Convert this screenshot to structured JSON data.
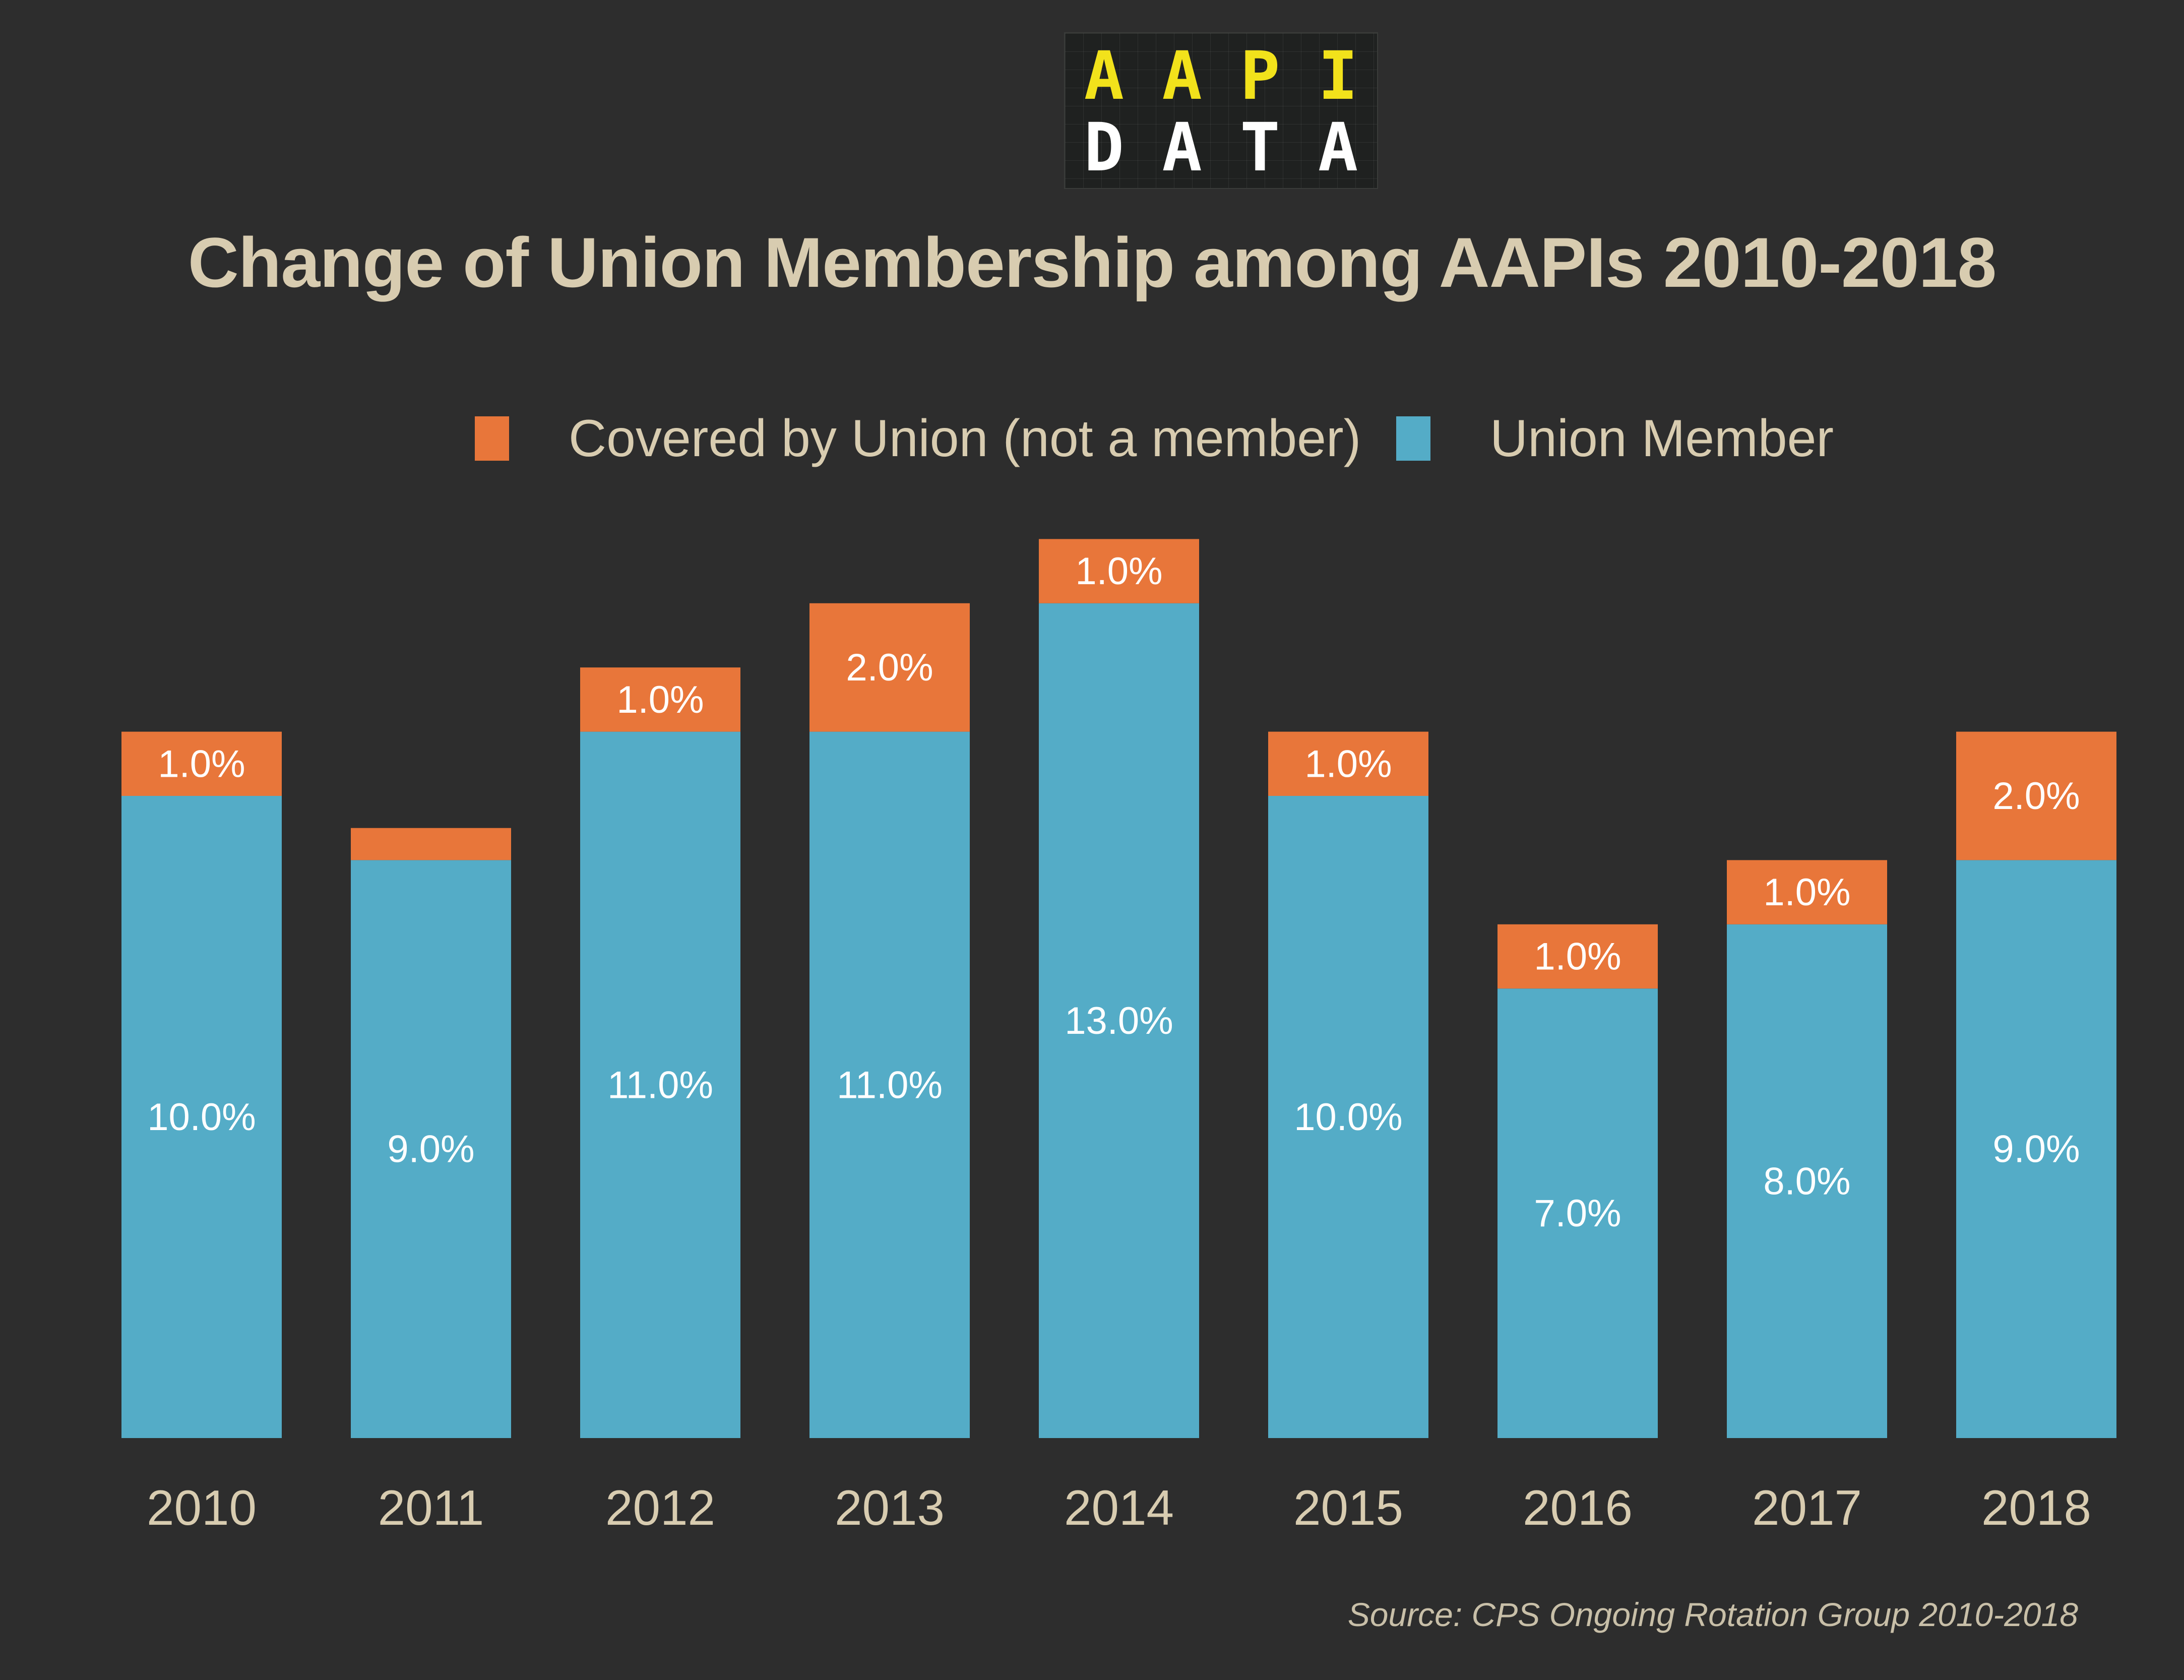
{
  "logo": {
    "line1": [
      "A",
      "A",
      "P",
      "I"
    ],
    "line2": [
      "D",
      "A",
      "T",
      "A"
    ]
  },
  "title": "Change of Union Membership among AAPIs 2010-2018",
  "source": "Source: CPS Ongoing Rotation Group 2010-2018",
  "colors": {
    "background": "#2d2d2d",
    "covered": "#e8763a",
    "member": "#54acc7",
    "text": "#d8ccb0",
    "bar_label": "#ffffff"
  },
  "chart_data": {
    "type": "bar",
    "stacked": true,
    "categories": [
      "2010",
      "2011",
      "2012",
      "2013",
      "2014",
      "2015",
      "2016",
      "2017",
      "2018"
    ],
    "series": [
      {
        "name": "Union Member",
        "values": [
          10.0,
          9.0,
          11.0,
          11.0,
          13.0,
          10.0,
          7.0,
          8.0,
          9.0
        ],
        "labels": [
          "10.0%",
          "9.0%",
          "11.0%",
          "11.0%",
          "13.0%",
          "10.0%",
          "7.0%",
          "8.0%",
          "9.0%"
        ]
      },
      {
        "name": "Covered by Union (not a member)",
        "values": [
          1.0,
          0.5,
          1.0,
          2.0,
          1.0,
          1.0,
          1.0,
          1.0,
          2.0
        ],
        "labels": [
          "1.0%",
          "",
          "1.0%",
          "2.0%",
          "1.0%",
          "1.0%",
          "1.0%",
          "1.0%",
          "2.0%"
        ]
      }
    ],
    "legend": [
      "Covered by Union (not a member)",
      "Union Member"
    ],
    "legend_position": "top",
    "grid": false,
    "ylim": [
      0,
      14
    ]
  }
}
